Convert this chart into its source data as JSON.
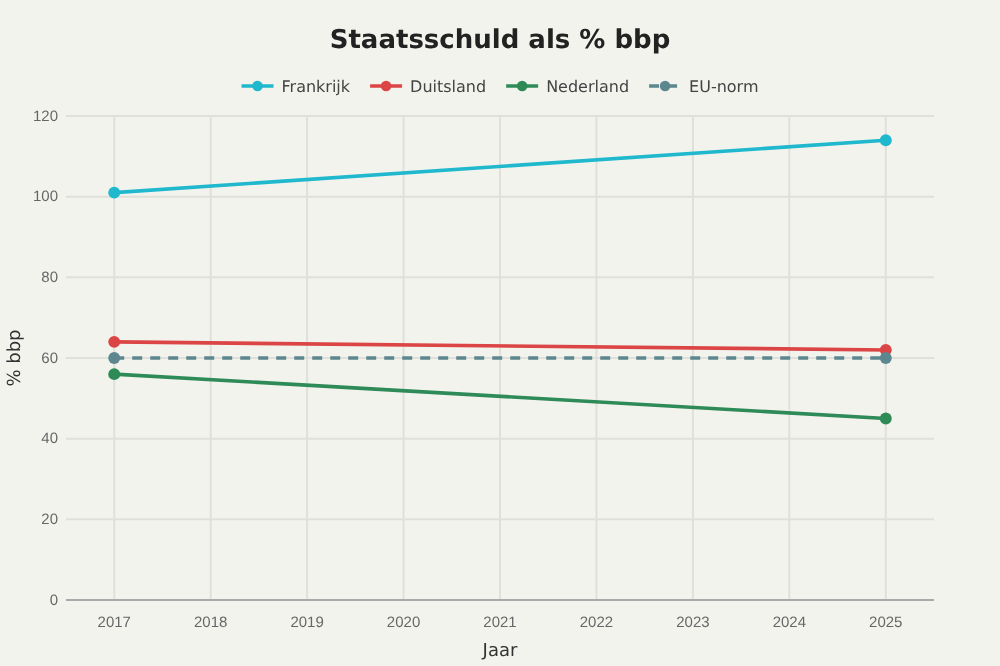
{
  "chart_data": {
    "type": "line",
    "title": "Staatsschuld als % bbp",
    "xlabel": "Jaar",
    "ylabel": "% bbp",
    "x": [
      2017,
      2025
    ],
    "series": [
      {
        "name": "Frankrijk",
        "color": "#1fb8cd",
        "values": [
          101,
          114
        ]
      },
      {
        "name": "Duitsland",
        "color": "#db4545",
        "values": [
          64,
          62
        ]
      },
      {
        "name": "Nederland",
        "color": "#2e8b57",
        "values": [
          56,
          45
        ]
      },
      {
        "name": "EU-norm",
        "color": "#5d878f",
        "values": [
          60,
          60
        ],
        "line_style": "dashed"
      }
    ],
    "xlim": [
      2016.5,
      2025.5
    ],
    "xticks": [
      2017,
      2018,
      2019,
      2020,
      2021,
      2022,
      2023,
      2024,
      2025
    ],
    "ylim": [
      0,
      120
    ],
    "yticks": [
      0,
      20,
      40,
      60,
      80,
      100,
      120
    ],
    "grid": true,
    "legend": "top",
    "marker": "circle",
    "line_style": "solid"
  }
}
